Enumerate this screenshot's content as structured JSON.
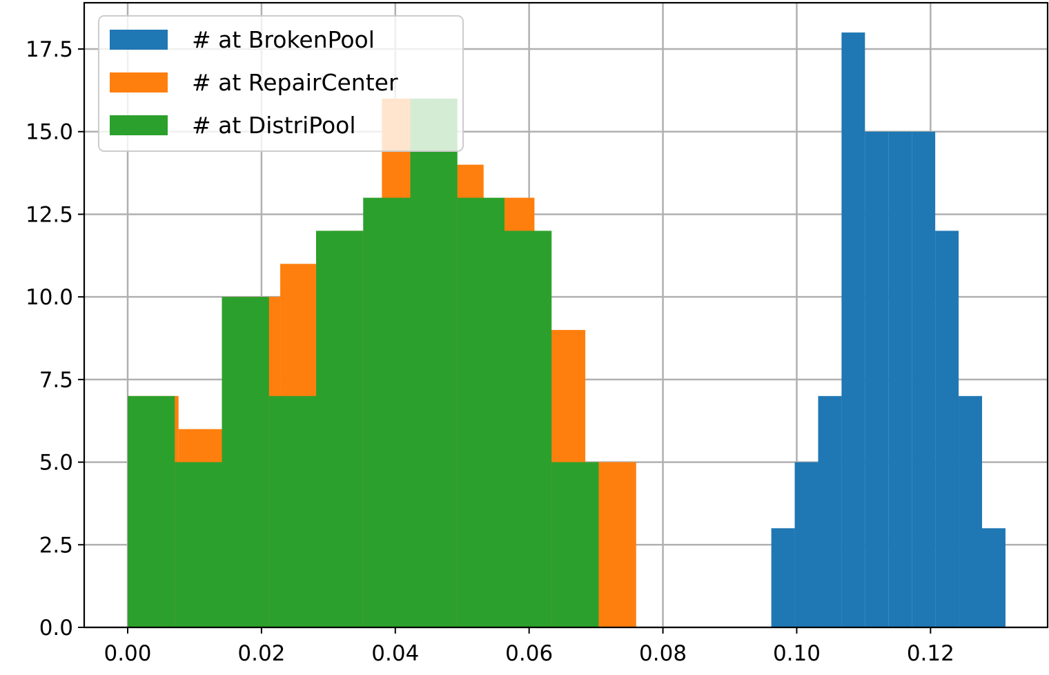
{
  "chart_data": {
    "type": "bar",
    "subtype": "histogram",
    "title": "",
    "xlabel": "",
    "ylabel": "",
    "xlim": [
      -0.0065,
      0.1375
    ],
    "ylim": [
      0,
      18.9
    ],
    "grid": true,
    "legend_placement": "top-left",
    "x_ticks": [
      0.0,
      0.02,
      0.04,
      0.06,
      0.08,
      0.1,
      0.12
    ],
    "x_tick_labels": [
      "0.00",
      "0.02",
      "0.04",
      "0.06",
      "0.08",
      "0.10",
      "0.12"
    ],
    "y_ticks": [
      0.0,
      2.5,
      5.0,
      7.5,
      10.0,
      12.5,
      15.0,
      17.5
    ],
    "y_tick_labels": [
      "0.0",
      "2.5",
      "5.0",
      "7.5",
      "10.0",
      "12.5",
      "15.0",
      "17.5"
    ],
    "series": [
      {
        "name": "# at BrokenPool",
        "color": "#1f77b4",
        "bin_edges": [
          0.0962,
          0.0997,
          0.1032,
          0.1067,
          0.1102,
          0.1137,
          0.1172,
          0.1207,
          0.1242,
          0.1277,
          0.1312
        ],
        "counts": [
          3,
          5,
          7,
          18,
          15,
          15,
          15,
          12,
          7,
          3
        ]
      },
      {
        "name": "# at RepairCenter",
        "color": "#ff7f0e",
        "bin_edges": [
          0.0,
          0.0076,
          0.0152,
          0.0228,
          0.0304,
          0.038,
          0.0456,
          0.0532,
          0.0608,
          0.0684,
          0.076
        ],
        "counts": [
          7,
          6,
          10,
          11,
          12,
          16,
          14,
          13,
          9,
          5
        ]
      },
      {
        "name": "# at DistriPool",
        "color": "#2ca02c",
        "bin_edges": [
          0.0,
          0.00704,
          0.01408,
          0.02112,
          0.02816,
          0.0352,
          0.04224,
          0.04928,
          0.05632,
          0.06336,
          0.0704
        ],
        "counts": [
          7,
          5,
          10,
          7,
          12,
          13,
          16,
          13,
          12,
          5
        ]
      }
    ]
  }
}
